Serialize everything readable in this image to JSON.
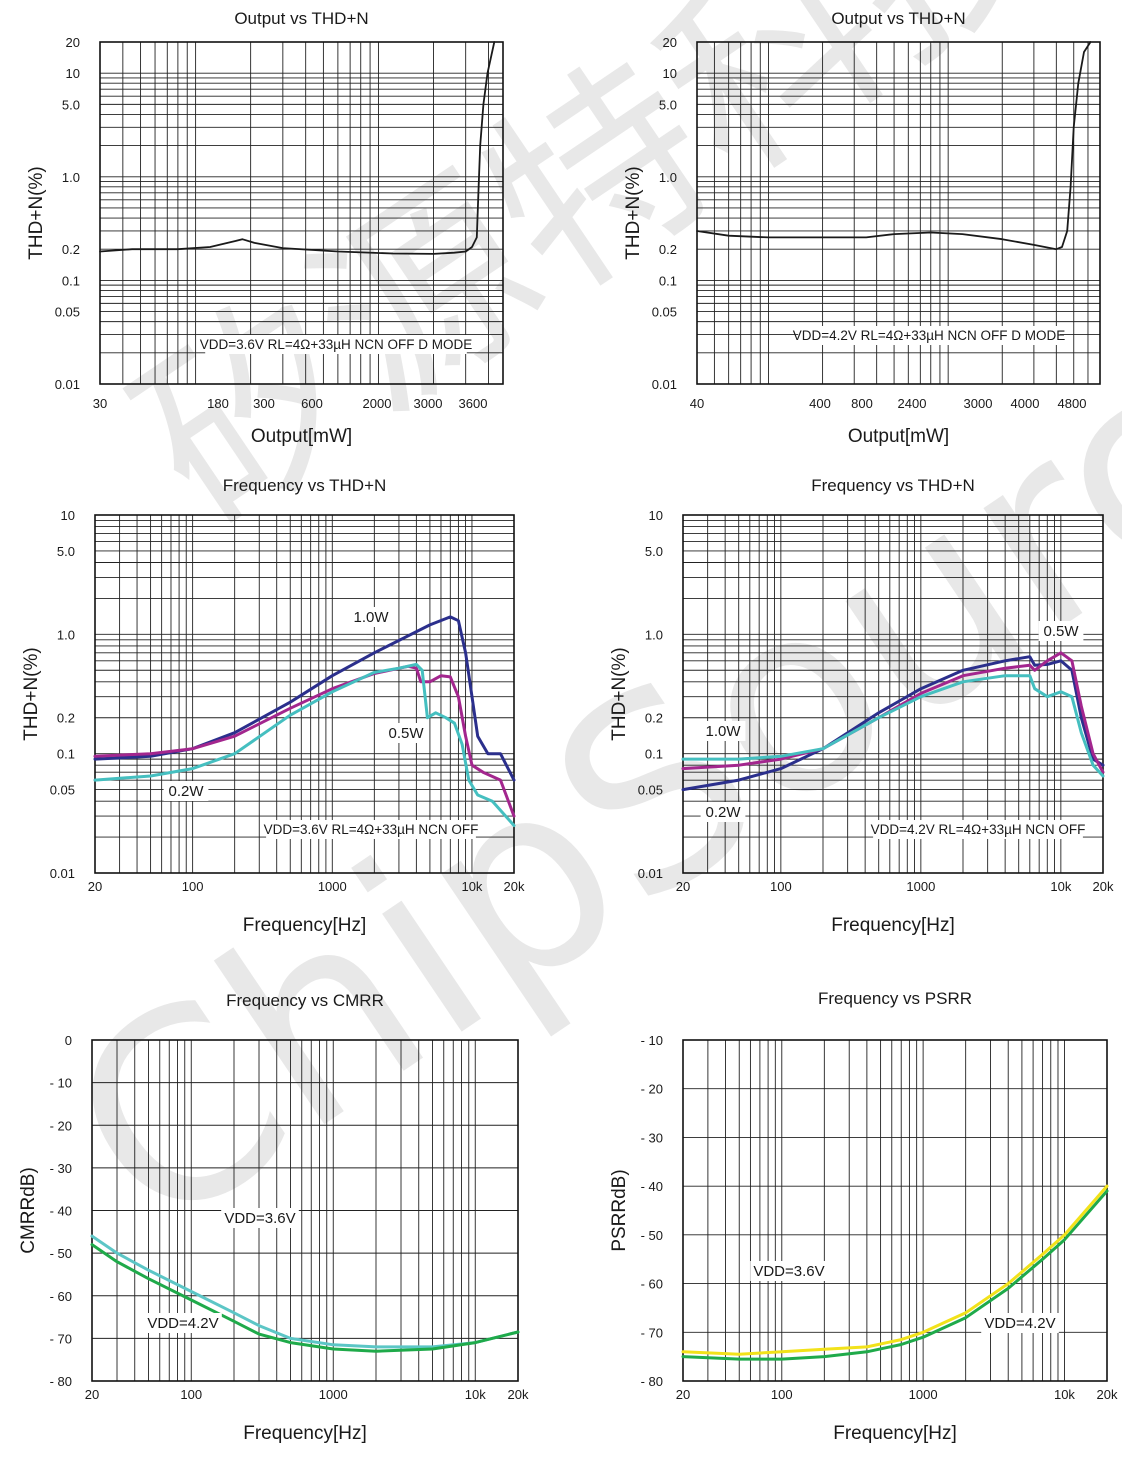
{
  "colors": {
    "navy": "#2b2f8c",
    "magenta": "#a3268e",
    "teal": "#45bfc0",
    "black": "#1a1a1a",
    "green": "#1faa4a",
    "lightteal": "#5cc6c6",
    "yellow": "#f2e21a"
  },
  "watermark": {
    "cn": "矽源特科技",
    "en": "ChipSourceT"
  },
  "chart_data": [
    {
      "type": "line",
      "title": "Output vs THD+N",
      "xlabel": "Output[mW]",
      "ylabel": "THD+N(%)",
      "x_scale": "log",
      "y_scale": "log",
      "xlim": [
        30,
        4800
      ],
      "ylim": [
        0.01,
        20
      ],
      "x_ticks": [
        "30",
        "180",
        "300",
        "600",
        "2000",
        "3000",
        "3600"
      ],
      "y_ticks": [
        "0.01",
        "0.05",
        "0.1",
        "0.2",
        "1.0",
        "5.0",
        "10",
        "20"
      ],
      "annotation": "VDD=3.6V RL=4Ω+33µH NCN OFF D MODE",
      "grid": true,
      "series": [
        {
          "color": "black",
          "points": [
            [
              30,
              0.19
            ],
            [
              45,
              0.2
            ],
            [
              80,
              0.2
            ],
            [
              120,
              0.21
            ],
            [
              165,
              0.24
            ],
            [
              180,
              0.25
            ],
            [
              210,
              0.23
            ],
            [
              300,
              0.205
            ],
            [
              600,
              0.19
            ],
            [
              1200,
              0.182
            ],
            [
              2000,
              0.18
            ],
            [
              2600,
              0.185
            ],
            [
              3000,
              0.19
            ],
            [
              3250,
              0.21
            ],
            [
              3450,
              0.26
            ],
            [
              3520,
              0.7
            ],
            [
              3600,
              2.0
            ],
            [
              3750,
              5.0
            ],
            [
              3950,
              10
            ],
            [
              4300,
              20
            ]
          ]
        }
      ]
    },
    {
      "type": "line",
      "title": "Output vs THD+N",
      "xlabel": "Output[mW]",
      "ylabel": "THD+N(%)",
      "x_scale": "log",
      "y_scale": "log",
      "xlim": [
        40,
        7000
      ],
      "ylim": [
        0.01,
        20
      ],
      "x_ticks": [
        "40",
        "400",
        "800",
        "2400",
        "3000",
        "4000",
        "4800"
      ],
      "y_ticks": [
        "0.01",
        "0.05",
        "0.1",
        "0.2",
        "1.0",
        "5.0",
        "10",
        "20"
      ],
      "annotation": "VDD=4.2V RL=4Ω+33µH NCN OFF D MODE",
      "grid": true,
      "series": [
        {
          "color": "black",
          "points": [
            [
              40,
              0.3
            ],
            [
              60,
              0.27
            ],
            [
              100,
              0.26
            ],
            [
              200,
              0.26
            ],
            [
              350,
              0.26
            ],
            [
              500,
              0.28
            ],
            [
              800,
              0.29
            ],
            [
              1200,
              0.28
            ],
            [
              2000,
              0.25
            ],
            [
              3000,
              0.22
            ],
            [
              4000,
              0.2
            ],
            [
              4300,
              0.21
            ],
            [
              4600,
              0.3
            ],
            [
              4800,
              0.8
            ],
            [
              5000,
              3.0
            ],
            [
              5300,
              8.0
            ],
            [
              5700,
              16.0
            ],
            [
              6200,
              20
            ]
          ]
        }
      ]
    },
    {
      "type": "line",
      "title": "Frequency vs THD+N",
      "xlabel": "Frequency[Hz]",
      "ylabel": "THD+N(%)",
      "x_scale": "log",
      "y_scale": "log",
      "xlim": [
        20,
        20000
      ],
      "ylim": [
        0.01,
        10
      ],
      "x_ticks": [
        "20",
        "100",
        "1000",
        "10k",
        "20k"
      ],
      "y_ticks": [
        "0.01",
        "0.05",
        "0.1",
        "0.2",
        "1.0",
        "5.0",
        "10"
      ],
      "annotation": "VDD=3.6V RL=4Ω+33µH NCN OFF",
      "labels": [
        "1.0W",
        "0.5W",
        "0.2W"
      ],
      "grid": true,
      "series": [
        {
          "name": "1.0W",
          "color": "navy",
          "points": [
            [
              20,
              0.09
            ],
            [
              50,
              0.095
            ],
            [
              100,
              0.11
            ],
            [
              200,
              0.15
            ],
            [
              500,
              0.27
            ],
            [
              1000,
              0.45
            ],
            [
              2000,
              0.7
            ],
            [
              5000,
              1.2
            ],
            [
              7000,
              1.4
            ],
            [
              8000,
              1.3
            ],
            [
              9000,
              0.7
            ],
            [
              10000,
              0.3
            ],
            [
              11000,
              0.14
            ],
            [
              13000,
              0.1
            ],
            [
              16000,
              0.1
            ],
            [
              20000,
              0.06
            ]
          ]
        },
        {
          "name": "0.5W",
          "color": "magenta",
          "points": [
            [
              20,
              0.095
            ],
            [
              50,
              0.1
            ],
            [
              100,
              0.11
            ],
            [
              200,
              0.14
            ],
            [
              500,
              0.24
            ],
            [
              1000,
              0.35
            ],
            [
              2000,
              0.47
            ],
            [
              3500,
              0.54
            ],
            [
              4000,
              0.52
            ],
            [
              4300,
              0.4
            ],
            [
              5000,
              0.4
            ],
            [
              6000,
              0.45
            ],
            [
              7000,
              0.44
            ],
            [
              8000,
              0.3
            ],
            [
              9000,
              0.14
            ],
            [
              10000,
              0.08
            ],
            [
              12000,
              0.07
            ],
            [
              16000,
              0.06
            ],
            [
              20000,
              0.03
            ]
          ]
        },
        {
          "name": "0.2W",
          "color": "teal",
          "points": [
            [
              20,
              0.06
            ],
            [
              50,
              0.065
            ],
            [
              100,
              0.075
            ],
            [
              200,
              0.1
            ],
            [
              500,
              0.21
            ],
            [
              1000,
              0.33
            ],
            [
              2000,
              0.48
            ],
            [
              3000,
              0.52
            ],
            [
              4000,
              0.56
            ],
            [
              4400,
              0.5
            ],
            [
              4800,
              0.2
            ],
            [
              5500,
              0.22
            ],
            [
              6500,
              0.2
            ],
            [
              7500,
              0.18
            ],
            [
              8500,
              0.12
            ],
            [
              9500,
              0.06
            ],
            [
              11000,
              0.045
            ],
            [
              14000,
              0.04
            ],
            [
              20000,
              0.025
            ]
          ]
        }
      ]
    },
    {
      "type": "line",
      "title": "Frequency vs THD+N",
      "xlabel": "Frequency[Hz]",
      "ylabel": "THD+N(%)",
      "x_scale": "log",
      "y_scale": "log",
      "xlim": [
        20,
        20000
      ],
      "ylim": [
        0.01,
        10
      ],
      "x_ticks": [
        "20",
        "100",
        "1000",
        "10k",
        "20k"
      ],
      "y_ticks": [
        "0.01",
        "0.05",
        "0.1",
        "0.2",
        "1.0",
        "5.0",
        "10"
      ],
      "annotation": "VDD=4.2V RL=4Ω+33µH NCN OFF",
      "labels": [
        "0.5W",
        "1.0W",
        "0.2W"
      ],
      "grid": true,
      "series": [
        {
          "name": "1.0W",
          "color": "navy",
          "points": [
            [
              20,
              0.05
            ],
            [
              50,
              0.06
            ],
            [
              100,
              0.075
            ],
            [
              200,
              0.11
            ],
            [
              500,
              0.22
            ],
            [
              1000,
              0.35
            ],
            [
              2000,
              0.5
            ],
            [
              4000,
              0.6
            ],
            [
              6000,
              0.65
            ],
            [
              6500,
              0.55
            ],
            [
              8000,
              0.56
            ],
            [
              10000,
              0.6
            ],
            [
              12000,
              0.5
            ],
            [
              14000,
              0.2
            ],
            [
              17000,
              0.09
            ],
            [
              20000,
              0.08
            ]
          ]
        },
        {
          "name": "0.5W",
          "color": "magenta",
          "points": [
            [
              20,
              0.075
            ],
            [
              50,
              0.08
            ],
            [
              100,
              0.09
            ],
            [
              200,
              0.11
            ],
            [
              500,
              0.2
            ],
            [
              1000,
              0.32
            ],
            [
              2000,
              0.45
            ],
            [
              4000,
              0.52
            ],
            [
              6000,
              0.55
            ],
            [
              6500,
              0.5
            ],
            [
              8000,
              0.6
            ],
            [
              10000,
              0.7
            ],
            [
              12000,
              0.6
            ],
            [
              14000,
              0.25
            ],
            [
              17000,
              0.1
            ],
            [
              20000,
              0.07
            ]
          ]
        },
        {
          "name": "0.2W",
          "color": "teal",
          "points": [
            [
              20,
              0.09
            ],
            [
              50,
              0.09
            ],
            [
              100,
              0.095
            ],
            [
              200,
              0.11
            ],
            [
              500,
              0.2
            ],
            [
              1000,
              0.3
            ],
            [
              2000,
              0.4
            ],
            [
              4000,
              0.45
            ],
            [
              6000,
              0.45
            ],
            [
              6500,
              0.35
            ],
            [
              8000,
              0.3
            ],
            [
              10000,
              0.33
            ],
            [
              12000,
              0.3
            ],
            [
              14000,
              0.15
            ],
            [
              17000,
              0.08
            ],
            [
              20000,
              0.065
            ]
          ]
        }
      ]
    },
    {
      "type": "line",
      "title": "Frequency vs CMRR",
      "xlabel": "Frequency[Hz]",
      "ylabel": "CMRRdB)",
      "x_scale": "log",
      "y_scale": "linear",
      "xlim": [
        20,
        20000
      ],
      "ylim": [
        -80,
        0
      ],
      "x_ticks": [
        "20",
        "100",
        "1000",
        "10k",
        "20k"
      ],
      "y_ticks": [
        "0",
        "- 10",
        "- 20",
        "- 30",
        "- 40",
        "- 50",
        "- 60",
        "- 70",
        "- 80"
      ],
      "labels": [
        "VDD=3.6V",
        "VDD=4.2V"
      ],
      "grid": true,
      "series": [
        {
          "name": "VDD=3.6V",
          "color": "lightteal",
          "points": [
            [
              20,
              -46
            ],
            [
              30,
              -50
            ],
            [
              50,
              -54
            ],
            [
              100,
              -59
            ],
            [
              200,
              -64
            ],
            [
              300,
              -67
            ],
            [
              500,
              -70
            ],
            [
              1000,
              -71.5
            ],
            [
              2000,
              -72
            ],
            [
              5000,
              -72
            ],
            [
              10000,
              -71
            ],
            [
              20000,
              -68.5
            ]
          ]
        },
        {
          "name": "VDD=4.2V",
          "color": "green",
          "points": [
            [
              20,
              -48
            ],
            [
              30,
              -52
            ],
            [
              50,
              -56
            ],
            [
              100,
              -61
            ],
            [
              200,
              -66
            ],
            [
              300,
              -69
            ],
            [
              500,
              -71
            ],
            [
              1000,
              -72.5
            ],
            [
              2000,
              -73
            ],
            [
              5000,
              -72.5
            ],
            [
              10000,
              -71
            ],
            [
              20000,
              -68.5
            ]
          ]
        }
      ]
    },
    {
      "type": "line",
      "title": "Frequency vs PSRR",
      "xlabel": "Frequency[Hz]",
      "ylabel": "PSRRdB)",
      "x_scale": "log",
      "y_scale": "linear",
      "xlim": [
        20,
        20000
      ],
      "ylim": [
        -80,
        -10
      ],
      "x_ticks": [
        "20",
        "100",
        "1000",
        "10k",
        "20k"
      ],
      "y_ticks": [
        "- 10",
        "- 20",
        "- 30",
        "- 40",
        "- 50",
        "- 60",
        "- 70",
        "- 80"
      ],
      "labels": [
        "VDD=3.6V",
        "VDD=4.2V"
      ],
      "grid": true,
      "series": [
        {
          "name": "VDD=3.6V",
          "color": "yellow",
          "points": [
            [
              20,
              -74
            ],
            [
              50,
              -74.5
            ],
            [
              100,
              -74
            ],
            [
              200,
              -73.5
            ],
            [
              400,
              -73
            ],
            [
              700,
              -71.5
            ],
            [
              1000,
              -70
            ],
            [
              2000,
              -66
            ],
            [
              4000,
              -60
            ],
            [
              7000,
              -54
            ],
            [
              10000,
              -50
            ],
            [
              20000,
              -40
            ]
          ]
        },
        {
          "name": "VDD=4.2V",
          "color": "green",
          "points": [
            [
              20,
              -75
            ],
            [
              50,
              -75.5
            ],
            [
              100,
              -75.5
            ],
            [
              200,
              -75
            ],
            [
              400,
              -74
            ],
            [
              700,
              -72.5
            ],
            [
              1000,
              -71
            ],
            [
              2000,
              -67
            ],
            [
              4000,
              -61
            ],
            [
              7000,
              -55
            ],
            [
              10000,
              -51
            ],
            [
              20000,
              -41
            ]
          ]
        }
      ]
    }
  ]
}
